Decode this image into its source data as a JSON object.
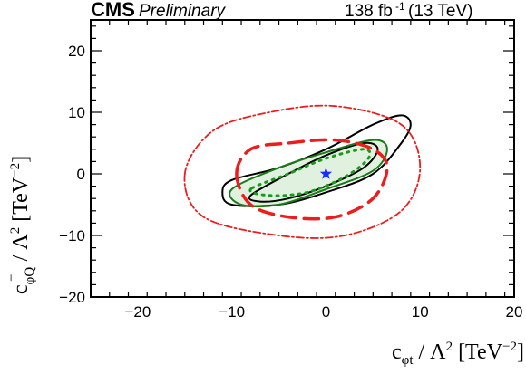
{
  "header": {
    "experiment": "CMS",
    "status": "Preliminary",
    "luminosity": "138 fb",
    "luminosity_exponent": "-1",
    "energy": "(13 TeV)"
  },
  "chart_data": {
    "type": "contour",
    "xlabel": "c_{φt} / Λ² [TeV⁻²]",
    "ylabel": "c⁻_{φQ} / Λ² [TeV⁻²]",
    "xlim": [
      -25,
      20
    ],
    "ylim": [
      -20,
      25
    ],
    "x_ticks": [
      -20,
      -10,
      0,
      10,
      20
    ],
    "x_tick_labels": [
      "−20",
      "−10",
      "0",
      "10",
      "20"
    ],
    "y_ticks": [
      -20,
      -10,
      0,
      10,
      20
    ],
    "y_tick_labels": [
      "−20",
      "−10",
      "0",
      "10",
      "20"
    ],
    "sm_point": {
      "x": 0,
      "y": 0,
      "marker": "star",
      "color": "#1a2cff"
    },
    "contours": [
      {
        "id": "outer-black",
        "color": "#000000",
        "style": "solid",
        "points": [
          [
            -11,
            -3
          ],
          [
            -10,
            -5
          ],
          [
            -5,
            -5
          ],
          [
            0,
            -3
          ],
          [
            5,
            0
          ],
          [
            8,
            5
          ],
          [
            9,
            8
          ],
          [
            8,
            9.5
          ],
          [
            5,
            8
          ],
          [
            0,
            4
          ],
          [
            -5,
            1
          ],
          [
            -10,
            -1
          ],
          [
            -11,
            -3
          ]
        ]
      },
      {
        "id": "inner-black",
        "color": "#000000",
        "style": "solid",
        "points": [
          [
            -8,
            -3.5
          ],
          [
            -7,
            -4.5
          ],
          [
            -4,
            -4
          ],
          [
            0,
            -2
          ],
          [
            4,
            1
          ],
          [
            5.5,
            4
          ],
          [
            4,
            5
          ],
          [
            0,
            3
          ],
          [
            -4,
            0
          ],
          [
            -8,
            -3.5
          ]
        ]
      },
      {
        "id": "green-band-outer",
        "color": "#1a7a1a",
        "style": "solid",
        "points": [
          [
            -10,
            -2.5
          ],
          [
            -9,
            -5
          ],
          [
            -5,
            -5
          ],
          [
            0,
            -2.5
          ],
          [
            5,
            0.5
          ],
          [
            6.5,
            4
          ],
          [
            5,
            5.5
          ],
          [
            0,
            3.5
          ],
          [
            -5,
            1
          ],
          [
            -10,
            -2.5
          ]
        ]
      },
      {
        "id": "green-dotted",
        "color": "#1a9a1a",
        "style": "dotted",
        "points": [
          [
            -8,
            -2.5
          ],
          [
            -6,
            -3.5
          ],
          [
            -2,
            -3
          ],
          [
            2,
            -0.5
          ],
          [
            4.5,
            2.5
          ],
          [
            4,
            4
          ],
          [
            0,
            2.5
          ],
          [
            -4,
            0
          ],
          [
            -8,
            -2.5
          ]
        ]
      },
      {
        "id": "red-dashed",
        "color": "#ee1c1c",
        "style": "dashed",
        "points": [
          [
            -9.5,
            0
          ],
          [
            -8,
            -5
          ],
          [
            -4,
            -7
          ],
          [
            1,
            -7
          ],
          [
            5,
            -4
          ],
          [
            6.5,
            1
          ],
          [
            5,
            4
          ],
          [
            1,
            5.5
          ],
          [
            -4,
            5
          ],
          [
            -8,
            4
          ],
          [
            -9.5,
            0
          ]
        ]
      },
      {
        "id": "red-dashdot-outer",
        "color": "#ee1c1c",
        "style": "dashdot",
        "points": [
          [
            -15,
            0
          ],
          [
            -13,
            -7
          ],
          [
            -5,
            -10
          ],
          [
            2,
            -10
          ],
          [
            8,
            -6
          ],
          [
            10,
            1
          ],
          [
            8,
            8
          ],
          [
            1,
            11
          ],
          [
            -6,
            10
          ],
          [
            -12,
            7
          ],
          [
            -15,
            0
          ]
        ]
      }
    ]
  }
}
